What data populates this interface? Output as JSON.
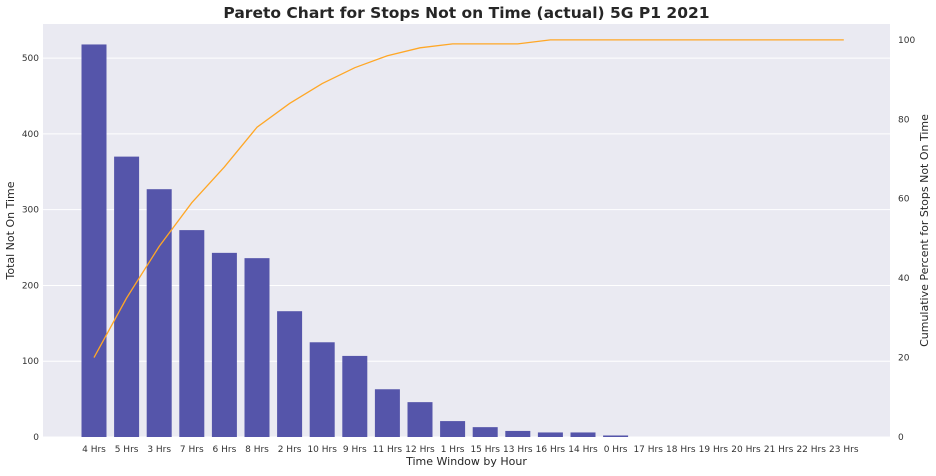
{
  "chart_data": {
    "type": "bar",
    "title": "Pareto Chart for Stops Not on Time (actual) 5G P1 2021",
    "xlabel": "Time Window by Hour",
    "ylabel": "Total Not On Time",
    "y2label": "Cumulative Percent for Stops Not On Time",
    "categories": [
      "4 Hrs",
      "5 Hrs",
      "3 Hrs",
      "7 Hrs",
      "6 Hrs",
      "8 Hrs",
      "2 Hrs",
      "10 Hrs",
      "9 Hrs",
      "11 Hrs",
      "12 Hrs",
      "1 Hrs",
      "15 Hrs",
      "13 Hrs",
      "16 Hrs",
      "14 Hrs",
      "0 Hrs",
      "17 Hrs",
      "18 Hrs",
      "19 Hrs",
      "20 Hrs",
      "21 Hrs",
      "22 Hrs",
      "23 Hrs"
    ],
    "series": [
      {
        "type": "bar",
        "values": [
          518,
          370,
          327,
          273,
          243,
          236,
          166,
          125,
          107,
          63,
          46,
          21,
          13,
          8,
          6,
          6,
          2,
          0,
          0,
          0,
          0,
          0,
          0,
          0
        ]
      },
      {
        "type": "line",
        "axis": "right",
        "values": [
          20,
          35,
          48,
          59,
          68,
          78,
          84,
          89,
          93,
          96,
          98,
          99,
          99,
          99,
          100,
          100,
          100,
          100,
          100,
          100,
          100,
          100,
          100,
          100
        ]
      }
    ],
    "ylim": [
      0,
      545
    ],
    "y2lim": [
      0,
      104
    ],
    "yticks": [
      0,
      100,
      200,
      300,
      400,
      500
    ],
    "y2ticks": [
      0,
      20,
      40,
      60,
      80,
      100
    ],
    "grid": true,
    "colors": {
      "bar": "#5555aa",
      "line": "#ffa726",
      "background": "#eaeaf2",
      "grid": "#ffffff"
    }
  }
}
